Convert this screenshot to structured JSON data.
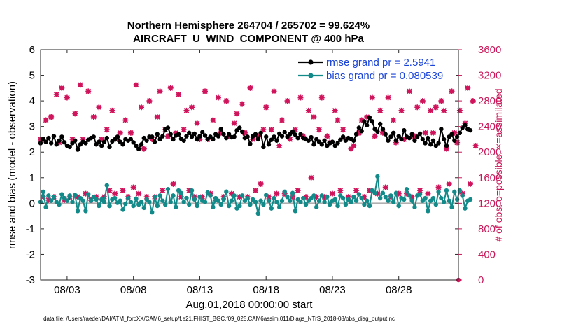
{
  "chart_data": {
    "type": "line",
    "title_line1": "Northern Hemisphere 264704 / 265702 = 99.624%",
    "title_line2": "AIRCRAFT_U_WIND_COMPONENT @ 400 hPa",
    "xlabel": "Aug.01,2018 00:00:00 start",
    "ylabel_left": "rmse and bias (model - observation)",
    "ylabel_right": "# of obs: o=possible; ×=assimilated",
    "footer": "data file: /Users/raeder/DAI/ATM_forcXX/CAM6_setup/f.e21.FHIST_BGC.f09_025.CAM6assim.011/Diags_NTrS_2018-08/obs_diag_output.nc",
    "x_ticks": [
      "08/03",
      "08/08",
      "08/13",
      "08/18",
      "08/23",
      "08/28"
    ],
    "x_tick_days": [
      3,
      8,
      13,
      18,
      23,
      28
    ],
    "xlim_days": [
      1,
      32.5
    ],
    "ylim_left": [
      -3,
      6
    ],
    "y_ticks_left": [
      "-3",
      "-2",
      "-1",
      "0",
      "1",
      "2",
      "3",
      "4",
      "5",
      "6"
    ],
    "ylim_right": [
      0,
      3600
    ],
    "y_ticks_right": [
      "0",
      "400",
      "800",
      "1200",
      "1600",
      "2000",
      "2400",
      "2800",
      "3200",
      "3600"
    ],
    "legend": [
      {
        "name": "rmse grand pr = 2.5941",
        "color": "#000000"
      },
      {
        "name": "bias grand pr = 0.080539",
        "color": "#138a8a"
      }
    ],
    "colors": {
      "rmse": "#000000",
      "bias": "#138a8a",
      "obs": "#d0145c",
      "zero": "#b0b0b0",
      "right_axis": "#c8195a"
    },
    "series": [
      {
        "name": "rmse",
        "values": [
          2.35,
          2.52,
          2.4,
          2.55,
          2.35,
          2.62,
          2.3,
          2.45,
          2.6,
          2.38,
          2.25,
          2.2,
          2.35,
          2.45,
          2.1,
          2.3,
          2.4,
          2.35,
          2.48,
          2.55,
          2.6,
          2.3,
          2.4,
          2.25,
          2.4,
          2.55,
          2.2,
          2.42,
          2.5,
          2.6,
          2.4,
          2.3,
          2.5,
          2.45,
          2.5,
          2.38,
          2.25,
          2.12,
          2.3,
          2.55,
          2.45,
          2.6,
          2.6,
          2.4,
          2.7,
          2.5,
          2.62,
          2.88,
          2.95,
          2.7,
          2.5,
          2.65,
          2.7,
          2.52,
          2.45,
          2.62,
          2.75,
          2.6,
          2.72,
          2.5,
          2.62,
          2.78,
          2.65,
          2.52,
          2.6,
          2.5,
          2.7,
          2.62,
          2.9,
          2.7,
          2.55,
          2.7,
          2.58,
          2.6,
          2.85,
          2.95,
          2.8,
          2.55,
          2.6,
          2.32,
          2.62,
          2.7,
          2.5,
          2.75,
          2.2,
          2.6,
          2.3,
          2.48,
          2.6,
          2.45,
          2.72,
          2.62,
          2.78,
          2.6,
          2.7,
          2.8,
          2.68,
          2.55,
          2.7,
          2.55,
          2.5,
          2.45,
          2.58,
          2.3,
          2.5,
          2.4,
          2.3,
          2.45,
          2.25,
          2.35,
          2.4,
          2.25,
          2.35,
          2.48,
          2.6,
          2.45,
          2.55,
          2.52,
          2.45,
          2.7,
          2.95,
          2.82,
          3.2,
          3.05,
          3.35,
          3.2,
          2.9,
          2.8,
          3.1,
          2.9,
          2.7,
          2.45,
          2.6,
          2.75,
          2.45,
          2.62,
          2.5,
          2.85,
          2.6,
          2.55,
          2.7,
          2.45,
          2.6,
          2.72,
          2.5,
          2.35,
          2.55,
          2.3,
          2.45,
          2.25,
          2.35,
          2.9,
          2.5,
          2.25,
          2.6,
          2.7,
          2.45,
          2.6,
          2.75,
          2.95,
          3.05,
          2.9,
          2.85
        ]
      },
      {
        "name": "bias",
        "values": [
          0.05,
          0.45,
          -0.15,
          0.3,
          0.1,
          0.25,
          0.05,
          -0.05,
          0.35,
          0.2,
          0.1,
          0.3,
          0.05,
          0.32,
          -0.3,
          0.2,
          0.1,
          -0.3,
          0.35,
          0.1,
          0.25,
          0.15,
          -0.1,
          0.15,
          0.05,
          0.7,
          -0.1,
          0.15,
          0.2,
          0.02,
          0.1,
          -0.25,
          -0.02,
          0.2,
          0.05,
          -0.1,
          0.18,
          -0.05,
          0.05,
          -0.18,
          0.15,
          0.05,
          -0.35,
          0.25,
          -0.1,
          0.3,
          0.1,
          -0.05,
          0.55,
          0.05,
          0.3,
          -0.15,
          0.5,
          0.4,
          0.05,
          0.2,
          -0.05,
          0.5,
          0.15,
          -0.1,
          0.25,
          0.1,
          0.05,
          0.42,
          0.3,
          -0.15,
          0.2,
          0.1,
          -0.05,
          0.15,
          0.45,
          -0.1,
          0.1,
          0.3,
          -0.2,
          -0.1,
          0.3,
          0.1,
          0.2,
          -0.05,
          0.15,
          0.05,
          -0.4,
          0.1,
          -0.05,
          0.32,
          0.1,
          -0.2,
          0.2,
          0.05,
          -0.15,
          0.1,
          0.45,
          0.25,
          0.1,
          0.4,
          -0.3,
          0.15,
          0.05,
          0.2,
          -0.05,
          0.1,
          0.2,
          0.3,
          -0.15,
          0.1,
          0.3,
          0.05,
          0.25,
          -0.05,
          0.1,
          0.15,
          -0.1,
          0.3,
          0.2,
          -0.05,
          0.15,
          0.05,
          0.25,
          0.1,
          0.35,
          0.2,
          -0.05,
          0.1,
          -0.1,
          0.5,
          0.4,
          1.05,
          0.2,
          0.4,
          0.25,
          0.1,
          0.3,
          0.05,
          0.4,
          -0.1,
          0.2,
          0.15,
          0.55,
          0.3,
          0.1,
          -0.15,
          0.3,
          0.35,
          0.1,
          0.2,
          -0.3,
          0.1,
          0.2,
          -0.05,
          0.45,
          0.2,
          0.05,
          0.5,
          0.1,
          -0.15,
          0.45,
          0.15,
          0.5,
          0.3,
          -0.2,
          0.1,
          0.15
        ]
      },
      {
        "name": "obs_possible",
        "values": [
          2200,
          1300,
          2500,
          1250,
          2550,
          1300,
          2900,
          2150,
          3000,
          1250,
          2850,
          1300,
          2200,
          2600,
          1300,
          3050,
          2200,
          1350,
          2950,
          1250,
          2550,
          1300,
          2700,
          2200,
          1300,
          2350,
          1400,
          2650,
          1350,
          2200,
          2300,
          1400,
          2500,
          1300,
          2300,
          1450,
          3050,
          1350,
          2700,
          2050,
          1300,
          2800,
          2200,
          1300,
          2550,
          2950,
          1400,
          2350,
          2250,
          3000,
          1500,
          2300,
          2900,
          1300,
          2350,
          2650,
          1400,
          2700,
          1300,
          2450,
          2200,
          1300,
          2950,
          2200,
          1350,
          2500,
          1250,
          2850,
          2300,
          1300,
          2800,
          2250,
          1350,
          2450,
          2600,
          1300,
          2750,
          2300,
          1300,
          3000,
          2200,
          1400,
          2250,
          1500,
          2350,
          2700,
          1300,
          2350,
          2950,
          1350,
          2100,
          2500,
          1350,
          2800,
          2200,
          1300,
          2350,
          1400,
          2850,
          2250,
          1300,
          2650,
          1600,
          2550,
          1300,
          2350,
          2850,
          1300,
          2250,
          2150,
          1350,
          2650,
          2500,
          1400,
          2350,
          2200,
          1300,
          2050,
          2100,
          1400,
          2300,
          2500,
          1300,
          2550,
          1400,
          2850,
          2250,
          1350,
          2650,
          2300,
          1450,
          2850,
          1300,
          2500,
          2150,
          1350,
          2650,
          2200,
          1350,
          2950,
          1300,
          2250,
          2700,
          1400,
          2800,
          2300,
          1350,
          2650,
          2300,
          2700,
          1450,
          2800,
          2650,
          2050,
          1500,
          2950,
          2300,
          2150,
          2650,
          1350,
          2450,
          3000,
          1500,
          2800,
          2100
        ]
      },
      {
        "name": "obs_assimilated",
        "values": [
          2200,
          1300,
          2500,
          1250,
          2550,
          1300,
          2900,
          2150,
          3000,
          1250,
          2850,
          1300,
          2200,
          2600,
          1300,
          3050,
          2200,
          1350,
          2950,
          1250,
          2550,
          1300,
          2700,
          2200,
          1300,
          2350,
          1400,
          2650,
          1350,
          2200,
          2300,
          1400,
          2500,
          1300,
          2300,
          1450,
          3050,
          1350,
          2700,
          2050,
          1300,
          2800,
          2200,
          1300,
          2550,
          2950,
          1400,
          2350,
          2250,
          3000,
          1500,
          2300,
          2900,
          1300,
          2350,
          2650,
          1400,
          2700,
          1300,
          2450,
          2200,
          1300,
          2950,
          2200,
          1350,
          2500,
          1250,
          2850,
          2300,
          1300,
          2800,
          2250,
          1350,
          2450,
          2600,
          1300,
          2750,
          2300,
          1300,
          3000,
          2200,
          1400,
          2250,
          1500,
          2350,
          2700,
          1300,
          2350,
          2950,
          1350,
          2100,
          2500,
          1350,
          2800,
          2200,
          1300,
          2350,
          1400,
          2850,
          2250,
          1300,
          2650,
          1600,
          2550,
          1300,
          2350,
          2850,
          1300,
          2250,
          2150,
          1350,
          2650,
          2500,
          1400,
          2350,
          2200,
          1300,
          2050,
          2100,
          1400,
          2300,
          2500,
          1300,
          2550,
          1400,
          2850,
          2250,
          1350,
          2650,
          2300,
          1450,
          2850,
          1300,
          2500,
          2150,
          1350,
          2650,
          2200,
          1350,
          2950,
          1300,
          2250,
          2700,
          1400,
          2800,
          2300,
          1350,
          2650,
          2300,
          2700,
          1450,
          2800,
          2650,
          2050,
          1500,
          2950,
          2300,
          2150,
          2650,
          1350,
          2450,
          3000,
          1500,
          2800,
          2100
        ]
      }
    ]
  }
}
